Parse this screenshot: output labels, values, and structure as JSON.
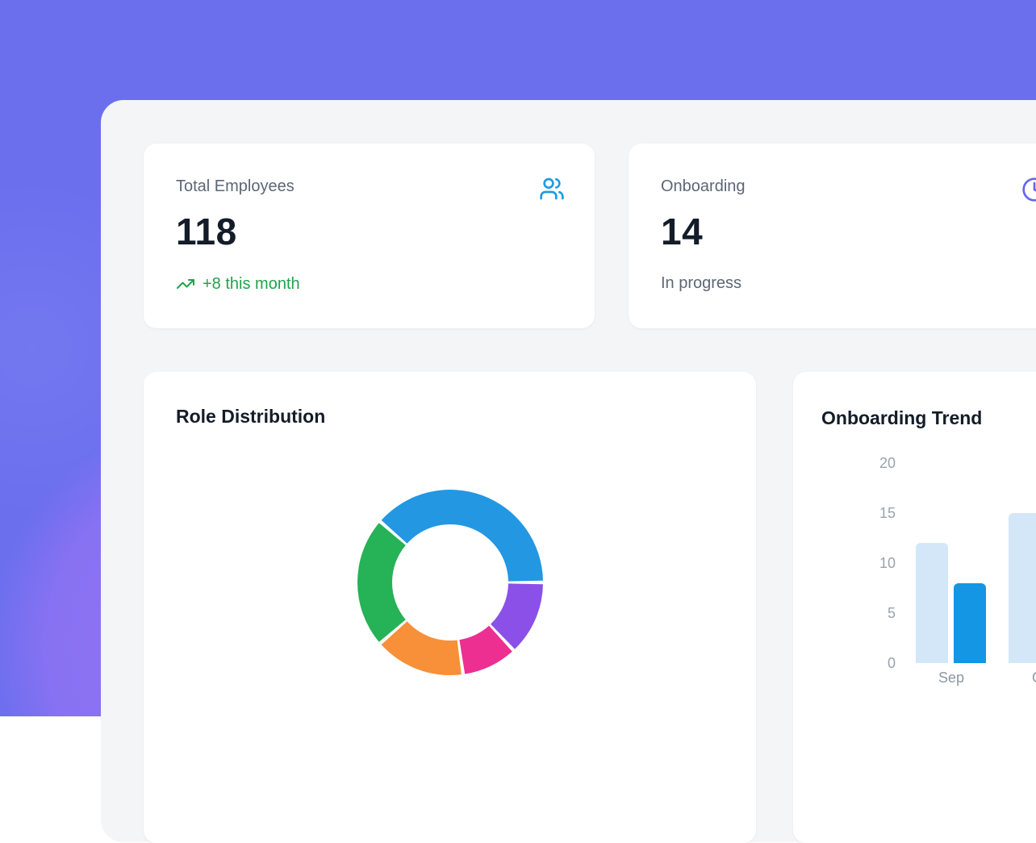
{
  "page": {
    "background_color": "#6b6fee",
    "background_blob_color": "#b976fa",
    "panel_color": "#f4f5f7",
    "card_color": "#ffffff"
  },
  "cards": {
    "total_employees": {
      "label": "Total Employees",
      "value": "118",
      "trend": "+8 this month",
      "trend_color": "#21a24d",
      "icon": "users-icon",
      "icon_color": "#1d9ae3"
    },
    "onboarding": {
      "label": "Onboarding",
      "value": "14",
      "subtitle": "In progress",
      "icon": "clock-icon",
      "icon_color": "#6466ee"
    },
    "role_distribution": {
      "title": "Role Distribution"
    },
    "onboarding_trend": {
      "title": "Onboarding Trend"
    }
  },
  "chart_data": [
    {
      "type": "pie",
      "donut": true,
      "title": "Role Distribution",
      "labels_visible": false,
      "legend": "none",
      "segments": [
        {
          "name": "segment-blue",
          "color": "#2397e2",
          "start_deg": -49,
          "end_deg": 90,
          "percent": 38.6
        },
        {
          "name": "segment-purple",
          "color": "#8a50e8",
          "start_deg": 90,
          "end_deg": 137,
          "percent": 13.1
        },
        {
          "name": "segment-pink",
          "color": "#ec2f90",
          "start_deg": 137,
          "end_deg": 172,
          "percent": 9.7
        },
        {
          "name": "segment-orange",
          "color": "#f79038",
          "start_deg": 172,
          "end_deg": 229,
          "percent": 15.8
        },
        {
          "name": "segment-green",
          "color": "#26b256",
          "start_deg": 229,
          "end_deg": 311,
          "percent": 22.8
        }
      ]
    },
    {
      "type": "bar",
      "title": "Onboarding Trend",
      "categories": [
        "Sep",
        "Oct"
      ],
      "series": [
        {
          "name": "series-light-blue",
          "color": "#d3e7f8",
          "values": [
            12,
            15
          ]
        },
        {
          "name": "series-dark-blue",
          "color": "#1496e4",
          "values": [
            8,
            null
          ]
        }
      ],
      "ylim": [
        0,
        20
      ],
      "yticks": [
        0,
        5,
        10,
        15,
        20
      ],
      "grid": false,
      "legend": "none",
      "axis_label_color": "#9aa3ae"
    }
  ]
}
